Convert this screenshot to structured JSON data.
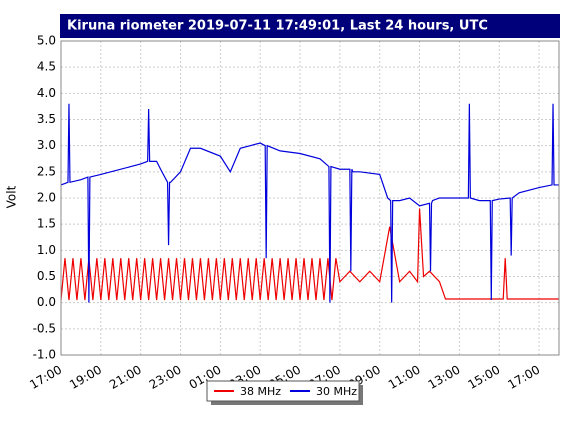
{
  "chart_data": {
    "type": "line",
    "title": "Kiruna riometer 2019-07-11 17:49:01, Last 24 hours, UTC",
    "y_label": "Volt",
    "xlim": [
      17,
      42
    ],
    "ylim": [
      -1,
      5
    ],
    "grid": true,
    "legend": "bottom",
    "xticks": [
      {
        "value": 17,
        "label": "17:00"
      },
      {
        "value": 19,
        "label": "19:00"
      },
      {
        "value": 21,
        "label": "21:00"
      },
      {
        "value": 23,
        "label": "23:00"
      },
      {
        "value": 25,
        "label": "01:00"
      },
      {
        "value": 27,
        "label": "03:00"
      },
      {
        "value": 29,
        "label": "05:00"
      },
      {
        "value": 31,
        "label": "07:00"
      },
      {
        "value": 33,
        "label": "09:00"
      },
      {
        "value": 35,
        "label": "11:00"
      },
      {
        "value": 37,
        "label": "13:00"
      },
      {
        "value": 39,
        "label": "15:00"
      },
      {
        "value": 41,
        "label": "17:00"
      }
    ],
    "yticks": [
      {
        "value": -1,
        "label": "-1.0"
      },
      {
        "value": -0.5,
        "label": "-0.5"
      },
      {
        "value": 0,
        "label": "0.0"
      },
      {
        "value": 0.5,
        "label": "0.5"
      },
      {
        "value": 1,
        "label": "1.0"
      },
      {
        "value": 1.5,
        "label": "1.5"
      },
      {
        "value": 2,
        "label": "2.0"
      },
      {
        "value": 2.5,
        "label": "2.5"
      },
      {
        "value": 3,
        "label": "3.0"
      },
      {
        "value": 3.5,
        "label": "3.5"
      },
      {
        "value": 4,
        "label": "4.0"
      },
      {
        "value": 4.5,
        "label": "4.5"
      },
      {
        "value": 5,
        "label": "5.0"
      }
    ],
    "series": [
      {
        "name": "38 MHz",
        "color": "#ee0000",
        "x": [
          17.0,
          17.2,
          17.4,
          17.6,
          17.8,
          18.0,
          18.2,
          18.4,
          18.6,
          18.8,
          19.0,
          19.2,
          19.4,
          19.6,
          19.8,
          20.0,
          20.2,
          20.4,
          20.6,
          20.8,
          21.0,
          21.2,
          21.4,
          21.6,
          21.8,
          22.0,
          22.2,
          22.4,
          22.6,
          22.8,
          23.0,
          23.2,
          23.4,
          23.6,
          23.8,
          24.0,
          24.2,
          24.4,
          24.6,
          24.8,
          25.0,
          25.2,
          25.4,
          25.6,
          25.8,
          26.0,
          26.2,
          26.4,
          26.6,
          26.8,
          27.0,
          27.2,
          27.4,
          27.6,
          27.8,
          28.0,
          28.2,
          28.4,
          28.6,
          28.8,
          29.0,
          29.2,
          29.4,
          29.6,
          29.8,
          30.0,
          30.2,
          30.4,
          30.6,
          30.8,
          31.0,
          31.5,
          32.0,
          32.5,
          33.0,
          33.5,
          34.0,
          34.5,
          34.9,
          35.0,
          35.2,
          35.5,
          36.0,
          36.3,
          37.0,
          38.0,
          39.2,
          39.3,
          39.4,
          40.0,
          41.0,
          42.0
        ],
        "values": [
          0.05,
          0.85,
          0.05,
          0.85,
          0.05,
          0.85,
          0.05,
          0.85,
          0.05,
          0.85,
          0.05,
          0.85,
          0.05,
          0.85,
          0.05,
          0.85,
          0.05,
          0.85,
          0.05,
          0.85,
          0.05,
          0.85,
          0.05,
          0.85,
          0.05,
          0.85,
          0.05,
          0.85,
          0.05,
          0.85,
          0.05,
          0.85,
          0.05,
          0.85,
          0.05,
          0.85,
          0.05,
          0.85,
          0.05,
          0.85,
          0.05,
          0.85,
          0.05,
          0.85,
          0.05,
          0.85,
          0.05,
          0.85,
          0.05,
          0.85,
          0.05,
          0.85,
          0.05,
          0.85,
          0.05,
          0.85,
          0.05,
          0.85,
          0.05,
          0.85,
          0.05,
          0.85,
          0.05,
          0.85,
          0.05,
          0.85,
          0.05,
          0.85,
          0.05,
          0.85,
          0.4,
          0.6,
          0.4,
          0.6,
          0.4,
          1.45,
          0.4,
          0.6,
          0.4,
          1.8,
          0.5,
          0.6,
          0.4,
          0.07,
          0.07,
          0.07,
          0.07,
          0.85,
          0.07,
          0.07,
          0.07,
          0.07
        ]
      },
      {
        "name": "30 MHz",
        "color": "#0000dd",
        "x": [
          17.0,
          17.35,
          17.4,
          17.45,
          18.0,
          18.35,
          18.4,
          18.45,
          19.0,
          19.5,
          20.5,
          21.0,
          21.35,
          21.4,
          21.45,
          21.8,
          22.0,
          22.35,
          22.4,
          22.45,
          22.5,
          23.0,
          23.5,
          24.0,
          25.0,
          25.5,
          26.0,
          26.5,
          27.0,
          27.25,
          27.3,
          27.35,
          28.0,
          29.0,
          30.0,
          30.45,
          30.5,
          30.55,
          31.0,
          31.5,
          31.55,
          31.6,
          31.65,
          32.0,
          33.0,
          33.4,
          33.55,
          33.6,
          33.65,
          34.0,
          34.5,
          35.0,
          35.5,
          35.55,
          35.6,
          35.65,
          36.0,
          37.0,
          37.45,
          37.5,
          37.55,
          38.0,
          38.55,
          38.6,
          38.65,
          39.0,
          39.55,
          39.6,
          39.65,
          40.0,
          41.0,
          41.65,
          41.7,
          41.75,
          42.0
        ],
        "values": [
          2.25,
          2.3,
          3.8,
          2.3,
          2.35,
          2.4,
          0.0,
          2.4,
          2.45,
          2.5,
          2.6,
          2.65,
          2.7,
          3.7,
          2.7,
          2.7,
          2.55,
          2.3,
          1.1,
          2.3,
          2.3,
          2.5,
          2.95,
          2.95,
          2.8,
          2.5,
          2.95,
          3.0,
          3.05,
          3.0,
          0.85,
          3.0,
          2.9,
          2.85,
          2.75,
          2.6,
          0.0,
          2.6,
          2.55,
          2.55,
          0.6,
          2.55,
          2.5,
          2.5,
          2.45,
          2.0,
          1.95,
          0.0,
          1.95,
          1.95,
          2.0,
          1.85,
          1.9,
          0.6,
          1.9,
          1.95,
          2.0,
          2.0,
          2.0,
          3.8,
          2.0,
          1.95,
          1.95,
          0.05,
          1.95,
          1.98,
          2.0,
          0.9,
          2.0,
          2.1,
          2.2,
          2.25,
          3.8,
          2.25,
          2.25
        ]
      }
    ]
  }
}
